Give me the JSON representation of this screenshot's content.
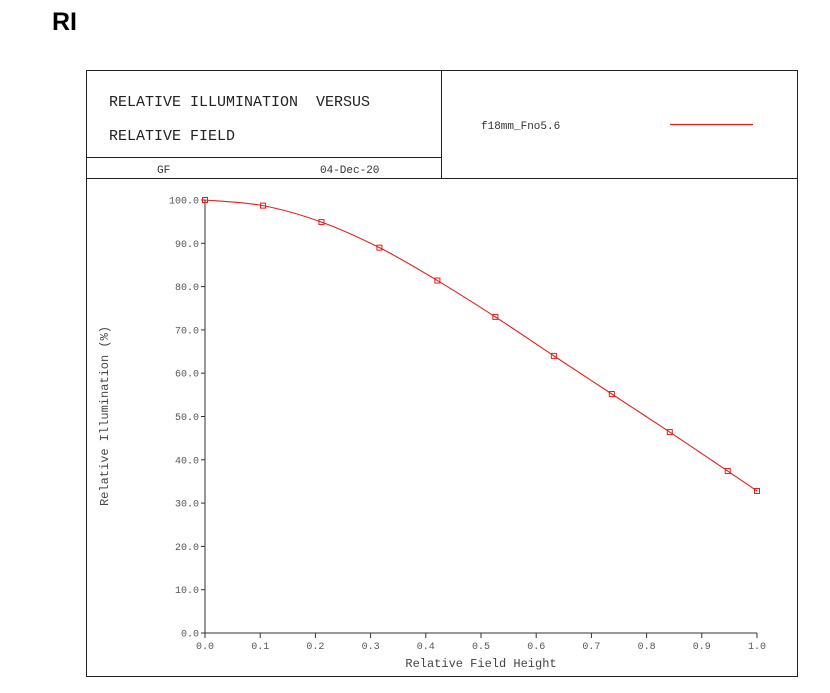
{
  "page_title": "RI",
  "header": {
    "title_line1": "RELATIVE ILLUMINATION  VERSUS",
    "title_line2": "RELATIVE FIELD",
    "author": "GF",
    "date": "04-Dec-20",
    "legend_label": "f18mm_Fno5.6"
  },
  "chart_data": {
    "type": "line",
    "title": "RELATIVE ILLUMINATION VERSUS RELATIVE FIELD",
    "xlabel": "Relative Field Height",
    "ylabel": "Relative Illumination (%)",
    "xlim": [
      0,
      1.0
    ],
    "ylim": [
      0,
      100
    ],
    "xticks": [
      "0.0",
      "0.1",
      "0.2",
      "0.3",
      "0.4",
      "0.5",
      "0.6",
      "0.7",
      "0.8",
      "0.9",
      "1.0"
    ],
    "yticks": [
      "0.0",
      "10.0",
      "20.0",
      "30.0",
      "40.0",
      "50.0",
      "60.0",
      "70.0",
      "80.0",
      "90.0",
      "100.0"
    ],
    "grid": false,
    "legend_position": "top-right header",
    "series": [
      {
        "name": "f18mm_Fno5.6",
        "color": "#e02020",
        "x": [
          0.0,
          0.105,
          0.211,
          0.316,
          0.421,
          0.526,
          0.632,
          0.737,
          0.842,
          0.947,
          1.0
        ],
        "y": [
          100.0,
          98.7,
          94.9,
          89.0,
          81.4,
          73.0,
          64.0,
          55.2,
          46.4,
          37.4,
          32.8
        ]
      }
    ]
  }
}
